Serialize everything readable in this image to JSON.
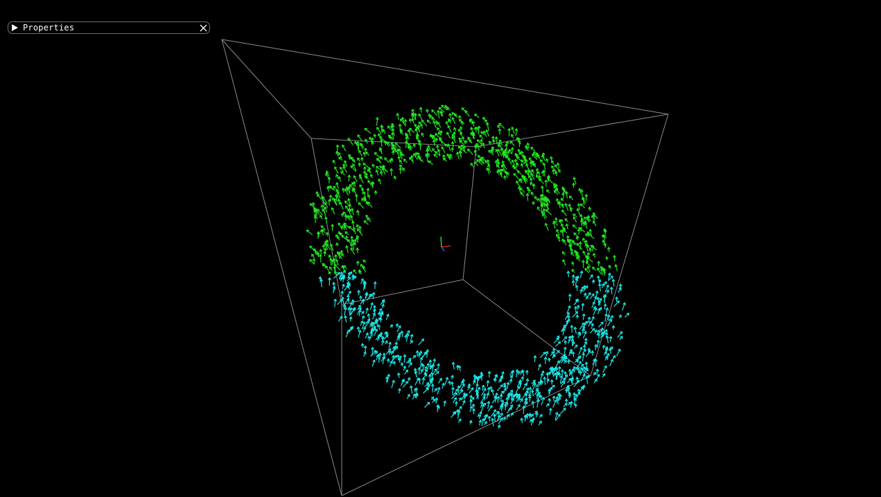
{
  "panel": {
    "title": "Properties",
    "toggle_icon": "triangle-right-icon",
    "close_icon": "close-icon",
    "border_color": "#6e6e80",
    "text_color": "#ffffff"
  },
  "scene": {
    "background_color": "#000000",
    "bounding_box_color": "#8c8c8c",
    "vector_colors": {
      "upper": "#22e622",
      "lower": "#1ee6e6"
    },
    "axis_colors": {
      "x": "#ff2020",
      "y": "#20ff20",
      "z": "#4060ff"
    },
    "vector_field_shape": "torus"
  }
}
